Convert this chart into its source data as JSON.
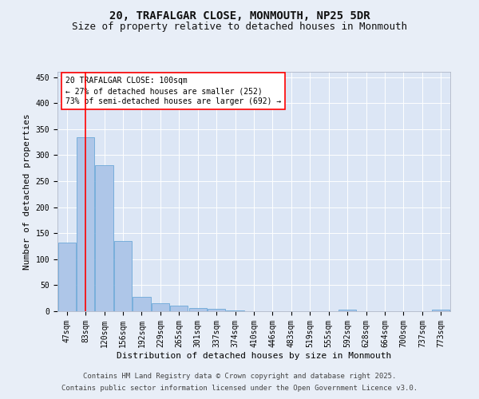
{
  "title1": "20, TRAFALGAR CLOSE, MONMOUTH, NP25 5DR",
  "title2": "Size of property relative to detached houses in Monmouth",
  "xlabel": "Distribution of detached houses by size in Monmouth",
  "ylabel": "Number of detached properties",
  "categories": [
    "47sqm",
    "83sqm",
    "120sqm",
    "156sqm",
    "192sqm",
    "229sqm",
    "265sqm",
    "301sqm",
    "337sqm",
    "374sqm",
    "410sqm",
    "446sqm",
    "483sqm",
    "519sqm",
    "555sqm",
    "592sqm",
    "628sqm",
    "664sqm",
    "700sqm",
    "737sqm",
    "773sqm"
  ],
  "values": [
    132,
    335,
    280,
    135,
    27,
    15,
    10,
    6,
    5,
    2,
    0,
    0,
    0,
    0,
    0,
    3,
    0,
    0,
    0,
    0,
    3
  ],
  "bar_color": "#aec6e8",
  "bar_edge_color": "#5a9fd4",
  "red_line_x": 1.0,
  "annotation_box_text": "20 TRAFALGAR CLOSE: 100sqm\n← 27% of detached houses are smaller (252)\n73% of semi-detached houses are larger (692) →",
  "background_color": "#e8eef7",
  "plot_bg_color": "#dce6f5",
  "grid_color": "#ffffff",
  "footer1": "Contains HM Land Registry data © Crown copyright and database right 2025.",
  "footer2": "Contains public sector information licensed under the Open Government Licence v3.0.",
  "ylim": [
    0,
    460
  ],
  "yticks": [
    0,
    50,
    100,
    150,
    200,
    250,
    300,
    350,
    400,
    450
  ],
  "title_fontsize": 10,
  "subtitle_fontsize": 9,
  "tick_fontsize": 7,
  "label_fontsize": 8,
  "annotation_fontsize": 7,
  "footer_fontsize": 6.5
}
